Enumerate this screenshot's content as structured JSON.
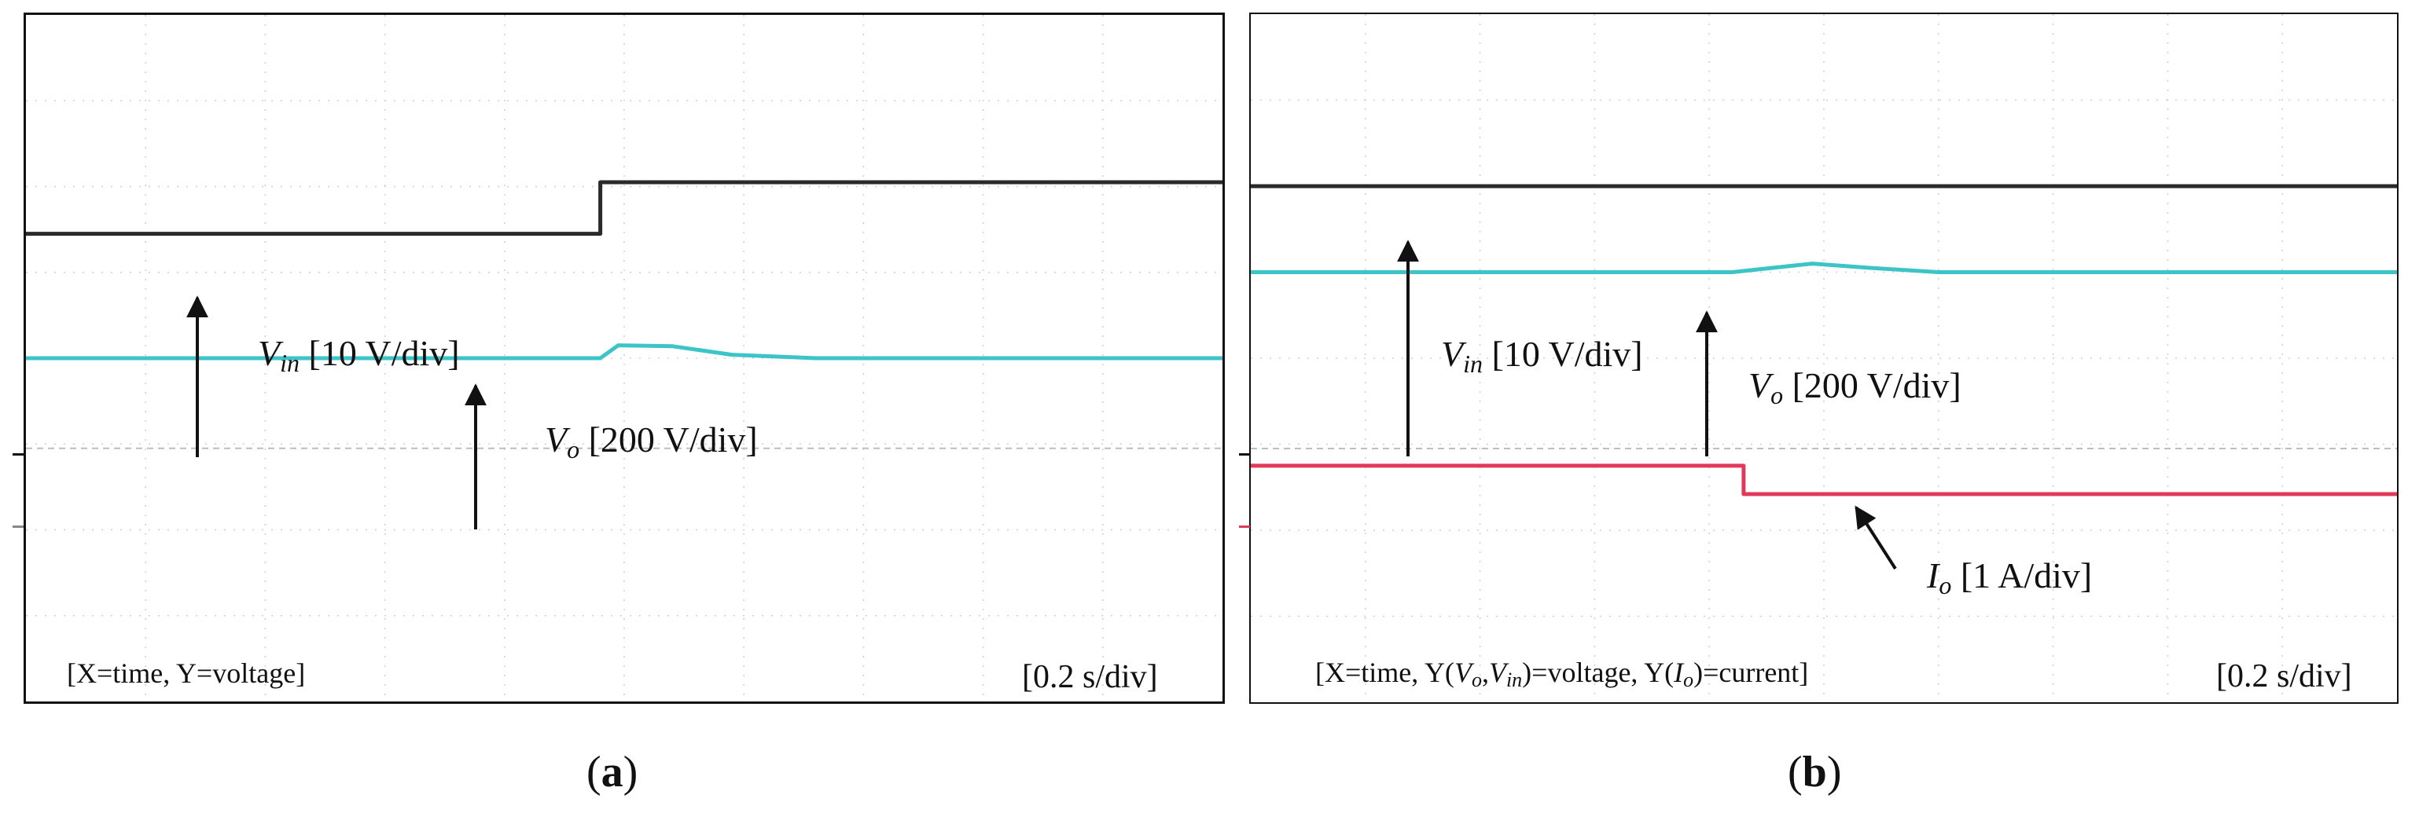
{
  "chart_data": [
    {
      "type": "line",
      "panel_label": "(a)",
      "note": "[X=time, Y=voltage]",
      "timebase": "[0.2 s/div]",
      "grid": true,
      "x_divisions": 10,
      "y_divisions": 8,
      "series": [
        {
          "name": "Vin [10 V/div]",
          "color": "#2a2a2a",
          "points": [
            [
              0,
              5.45
            ],
            [
              4.8,
              5.45
            ],
            [
              4.8,
              6.05
            ],
            [
              10,
              6.05
            ]
          ]
        },
        {
          "name": "Vo [200 V/div]",
          "color": "#3cc4c8",
          "points": [
            [
              0,
              4.0
            ],
            [
              4.8,
              4.0
            ],
            [
              4.95,
              4.15
            ],
            [
              5.4,
              4.14
            ],
            [
              5.9,
              4.04
            ],
            [
              6.6,
              4.0
            ],
            [
              10,
              4.0
            ]
          ]
        }
      ],
      "labels": {
        "vin": {
          "sym": "V",
          "sub": "in",
          "scale": "[10 V/div]"
        },
        "vo": {
          "sym": "V",
          "sub": "o",
          "scale": "[200 V/div]"
        }
      }
    },
    {
      "type": "line",
      "panel_label": "(b)",
      "note_parts": [
        "[X=time, Y(",
        "V",
        "o",
        ",",
        "V",
        "in",
        ")=voltage, Y(",
        "I",
        "o",
        ")=current]"
      ],
      "timebase": "[0.2 s/div]",
      "grid": true,
      "x_divisions": 10,
      "y_divisions": 8,
      "series": [
        {
          "name": "Vin [10 V/div]",
          "color": "#2a2a2a",
          "points": [
            [
              0,
              6.0
            ],
            [
              10,
              6.0
            ]
          ]
        },
        {
          "name": "Vo [200 V/div]",
          "color": "#3cc4c8",
          "points": [
            [
              0,
              5.0
            ],
            [
              4.2,
              5.0
            ],
            [
              4.9,
              5.1
            ],
            [
              5.4,
              5.05
            ],
            [
              6.0,
              5.0
            ],
            [
              10,
              5.0
            ]
          ]
        },
        {
          "name": "Io [1 A/div]",
          "color": "#e0395a",
          "points": [
            [
              0,
              2.75
            ],
            [
              4.3,
              2.75
            ],
            [
              4.3,
              2.42
            ],
            [
              10,
              2.42
            ]
          ]
        }
      ],
      "labels": {
        "vin": {
          "sym": "V",
          "sub": "in",
          "scale": "[10 V/div]"
        },
        "vo": {
          "sym": "V",
          "sub": "o",
          "scale": "[200 V/div]"
        },
        "io": {
          "sym": "I",
          "sub": "o",
          "scale": "[1 A/div]"
        }
      }
    }
  ]
}
